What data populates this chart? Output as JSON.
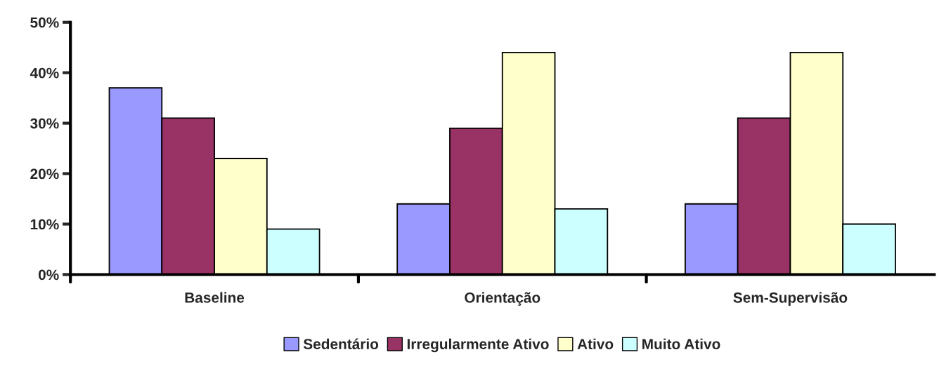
{
  "chart_data": {
    "type": "bar",
    "categories": [
      "Baseline",
      "Orientação",
      "Sem-Supervisão"
    ],
    "series": [
      {
        "name": "Sedentário",
        "color": "#9999ff",
        "values": [
          37,
          14,
          14
        ]
      },
      {
        "name": "Irregularmente Ativo",
        "color": "#993366",
        "values": [
          31,
          29,
          31
        ]
      },
      {
        "name": "Ativo",
        "color": "#ffffcc",
        "values": [
          23,
          44,
          44
        ]
      },
      {
        "name": "Muito Ativo",
        "color": "#ccffff",
        "values": [
          9,
          13,
          10
        ]
      }
    ],
    "ylim": [
      0,
      50
    ],
    "yticks": [
      {
        "value": 0,
        "label": "0%"
      },
      {
        "value": 10,
        "label": "10%"
      },
      {
        "value": 20,
        "label": "20%"
      },
      {
        "value": 30,
        "label": "30%"
      },
      {
        "value": 40,
        "label": "40%"
      },
      {
        "value": 50,
        "label": "50%"
      }
    ],
    "grid": false,
    "legend": "bottom"
  }
}
